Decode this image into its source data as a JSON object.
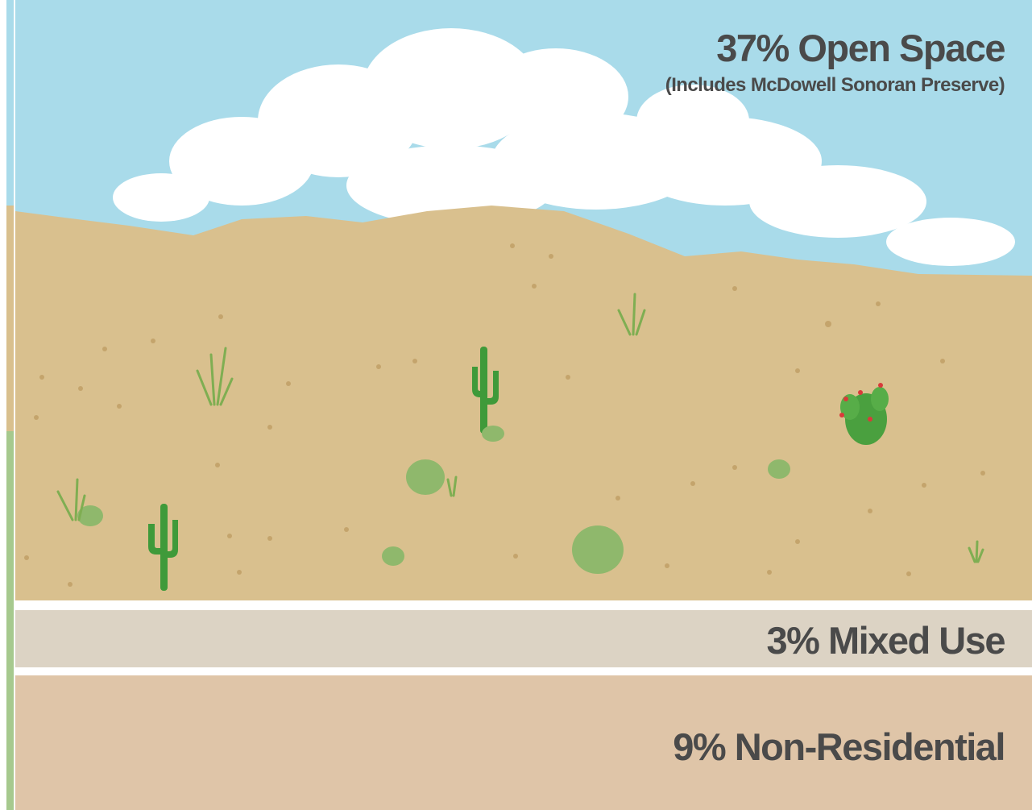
{
  "sections": [
    {
      "label": "37% Open Space",
      "note": "(Includes McDowell Sonoran Preserve)"
    },
    {
      "label": "3% Mixed Use"
    },
    {
      "label": "9% Non-Residential"
    }
  ]
}
